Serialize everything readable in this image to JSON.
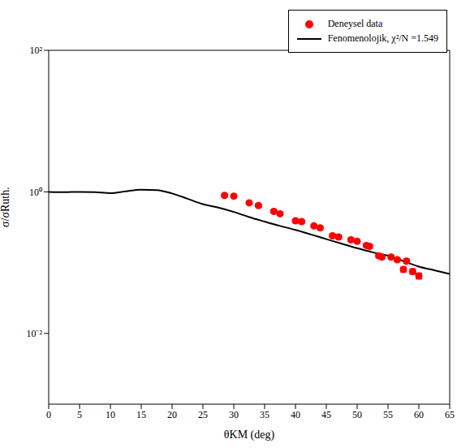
{
  "chart_data": {
    "type": "scatter",
    "x_label": "θKM (deg)",
    "y_label": "σ/σRuth.",
    "log": "y",
    "grid": false,
    "legend": "upper right",
    "xlim": [
      0,
      65
    ],
    "xticks": [
      0,
      5,
      10,
      15,
      20,
      25,
      30,
      35,
      40,
      45,
      50,
      55,
      60,
      65
    ],
    "ylim": [
      0.001,
      100
    ],
    "yticks": [
      {
        "value": 0.01,
        "label": "10⁻²"
      },
      {
        "value": 1,
        "label": "10⁰"
      },
      {
        "value": 100,
        "label": "10²"
      }
    ],
    "series": [
      {
        "name": "Deneysel data",
        "type": "scatter",
        "color": "#ff0000",
        "marker": "circle",
        "x": [
          28.5,
          30,
          32.5,
          34,
          36.5,
          37.5,
          40,
          41,
          43,
          44,
          46,
          47,
          49,
          50,
          51.5,
          52,
          53.5,
          54,
          55.5,
          56.5,
          57.5,
          58,
          59,
          60
        ],
        "values": [
          0.89,
          0.87,
          0.7,
          0.64,
          0.53,
          0.49,
          0.39,
          0.38,
          0.33,
          0.31,
          0.24,
          0.23,
          0.21,
          0.2,
          0.175,
          0.17,
          0.125,
          0.12,
          0.12,
          0.11,
          0.08,
          0.105,
          0.075,
          0.065
        ],
        "errors": [
          0.04,
          0.04,
          0.03,
          0.03,
          0.025,
          0.02,
          0.02,
          0.02,
          0.015,
          0.015,
          0.012,
          0.012,
          0.01,
          0.01,
          0.009,
          0.009,
          0.007,
          0.007,
          0.007,
          0.006,
          0.006,
          0.007,
          0.006,
          0.006
        ]
      },
      {
        "name": "Fenomenolojik, χ²/N =1.549",
        "type": "line",
        "color": "#000000",
        "line_style": "solid",
        "x": [
          0,
          2.5,
          5,
          7.5,
          10,
          12.5,
          15,
          17.5,
          20,
          22.5,
          25,
          27.5,
          30,
          32.5,
          35,
          37.5,
          40,
          42.5,
          45,
          47.5,
          50,
          52.5,
          55,
          57.5,
          60,
          62.5,
          65
        ],
        "values": [
          1.0,
          0.99,
          1.0,
          0.99,
          0.96,
          1.02,
          1.07,
          1.06,
          0.95,
          0.8,
          0.67,
          0.6,
          0.52,
          0.44,
          0.38,
          0.33,
          0.29,
          0.25,
          0.215,
          0.185,
          0.16,
          0.14,
          0.125,
          0.105,
          0.088,
          0.078,
          0.069
        ]
      }
    ]
  }
}
